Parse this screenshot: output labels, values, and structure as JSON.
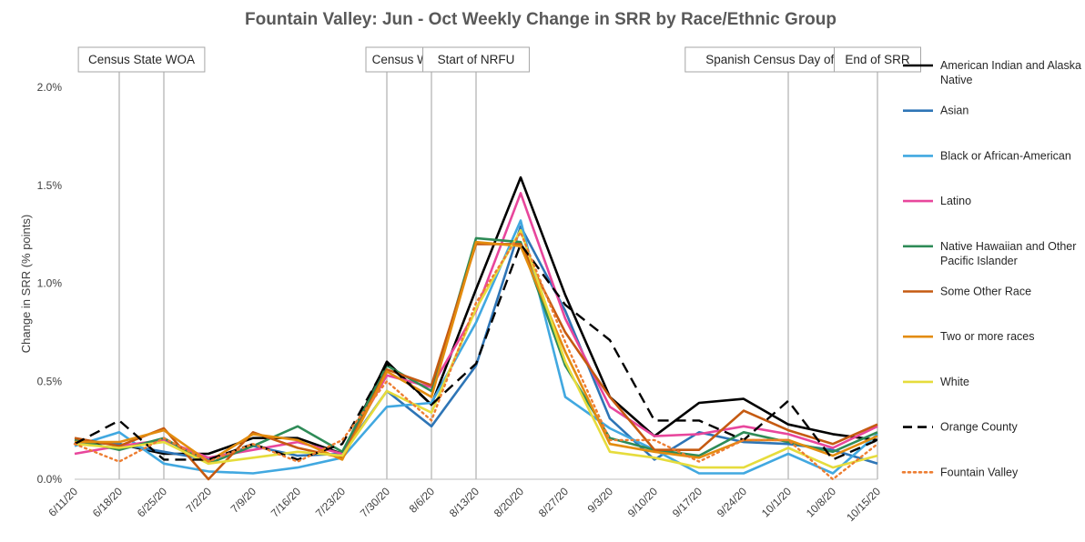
{
  "chart_data": {
    "type": "line",
    "title": "Fountain Valley: Jun - Oct Weekly Change in SRR by Race/Ethnic Group",
    "ylabel": "Change in SRR (% points)",
    "xlabel": "",
    "ylim": [
      0,
      2.0
    ],
    "y_ticks": [
      "0.0%",
      "0.5%",
      "1.0%",
      "1.5%",
      "2.0%"
    ],
    "y_tick_values": [
      0,
      0.5,
      1.0,
      1.5,
      2.0
    ],
    "grid": false,
    "legend_position": "right",
    "categories": [
      "6/11/20",
      "6/18/20",
      "6/25/20",
      "7/2/20",
      "7/9/20",
      "7/16/20",
      "7/23/20",
      "7/30/20",
      "8/6/20",
      "8/13/20",
      "8/20/20",
      "8/27/20",
      "9/3/20",
      "9/10/20",
      "9/17/20",
      "9/24/20",
      "10/1/20",
      "10/8/20",
      "10/15/20"
    ],
    "annotations": [
      {
        "label": "Census State WOA",
        "x": [
          "6/18/20",
          "6/25/20"
        ]
      },
      {
        "label": "Census WOA",
        "x": [
          "7/30/20",
          "8/6/20"
        ]
      },
      {
        "label": "Start of NRFU",
        "x": [
          "8/13/20"
        ]
      },
      {
        "label": "Spanish Census Day of Action",
        "x": [
          "10/1/20"
        ]
      },
      {
        "label": "End of SRR",
        "x": [
          "10/15/20"
        ]
      }
    ],
    "series": [
      {
        "name": "American Indian and Alaska Native",
        "color": "#000000",
        "dash": "solid",
        "values": [
          0.19,
          0.18,
          0.13,
          0.13,
          0.21,
          0.21,
          0.13,
          0.6,
          0.38,
          0.97,
          1.54,
          0.94,
          0.42,
          0.22,
          0.39,
          0.41,
          0.28,
          0.23,
          0.2
        ]
      },
      {
        "name": "Asian",
        "color": "#2E75B6",
        "dash": "solid",
        "values": [
          0.2,
          0.18,
          0.14,
          0.1,
          0.17,
          0.12,
          0.13,
          0.45,
          0.27,
          0.58,
          1.29,
          0.86,
          0.31,
          0.1,
          0.24,
          0.19,
          0.18,
          0.15,
          0.08
        ]
      },
      {
        "name": "Black or African-American",
        "color": "#41A8E0",
        "dash": "solid",
        "values": [
          0.17,
          0.24,
          0.08,
          0.04,
          0.03,
          0.06,
          0.11,
          0.37,
          0.39,
          0.8,
          1.32,
          0.42,
          0.26,
          0.15,
          0.03,
          0.03,
          0.13,
          0.03,
          0.23
        ]
      },
      {
        "name": "Latino",
        "color": "#E8469C",
        "dash": "solid",
        "values": [
          0.13,
          0.17,
          0.2,
          0.11,
          0.15,
          0.19,
          0.13,
          0.53,
          0.47,
          0.86,
          1.46,
          0.82,
          0.37,
          0.22,
          0.23,
          0.27,
          0.23,
          0.16,
          0.27
        ]
      },
      {
        "name": "Native Hawaiian and Other Pacific Islander",
        "color": "#2E8B57",
        "dash": "solid",
        "values": [
          0.2,
          0.15,
          0.21,
          0.08,
          0.17,
          0.27,
          0.14,
          0.58,
          0.45,
          1.23,
          1.21,
          0.58,
          0.21,
          0.15,
          0.12,
          0.24,
          0.19,
          0.14,
          0.24
        ]
      },
      {
        "name": "Some Other Race",
        "color": "#C55A11",
        "dash": "solid",
        "values": [
          0.21,
          0.17,
          0.26,
          0.0,
          0.24,
          0.16,
          0.11,
          0.56,
          0.48,
          1.2,
          1.2,
          0.75,
          0.42,
          0.15,
          0.15,
          0.35,
          0.25,
          0.18,
          0.28
        ]
      },
      {
        "name": "Two or more races",
        "color": "#E38C0E",
        "dash": "solid",
        "values": [
          0.19,
          0.19,
          0.25,
          0.09,
          0.23,
          0.2,
          0.1,
          0.55,
          0.42,
          1.21,
          1.19,
          0.65,
          0.18,
          0.14,
          0.11,
          0.2,
          0.2,
          0.12,
          0.22
        ]
      },
      {
        "name": "White",
        "color": "#E6DC3C",
        "dash": "solid",
        "values": [
          0.18,
          0.16,
          0.19,
          0.08,
          0.11,
          0.14,
          0.12,
          0.45,
          0.34,
          0.87,
          1.27,
          0.6,
          0.14,
          0.11,
          0.06,
          0.06,
          0.16,
          0.06,
          0.12
        ]
      },
      {
        "name": "Orange County",
        "color": "#000000",
        "dash": "dashed",
        "values": [
          0.18,
          0.3,
          0.1,
          0.1,
          0.18,
          0.1,
          0.18,
          0.59,
          0.38,
          0.59,
          1.2,
          0.89,
          0.71,
          0.3,
          0.3,
          0.2,
          0.4,
          0.1,
          0.2
        ]
      },
      {
        "name": "Fountain Valley",
        "color": "#ED7D31",
        "dash": "dotted",
        "values": [
          0.18,
          0.09,
          0.21,
          0.09,
          0.18,
          0.09,
          0.2,
          0.5,
          0.3,
          0.9,
          1.26,
          0.7,
          0.2,
          0.2,
          0.09,
          0.2,
          0.2,
          0.0,
          0.18
        ]
      }
    ]
  }
}
